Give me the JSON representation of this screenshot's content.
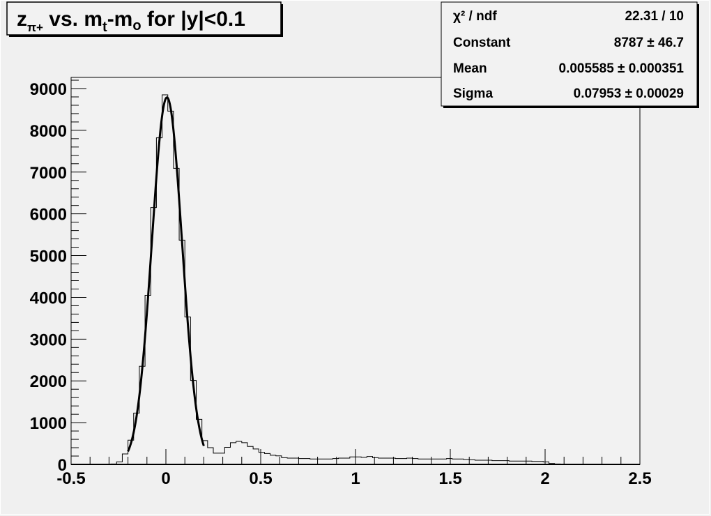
{
  "chart_data": {
    "type": "bar",
    "style": "step-histogram",
    "title_parts": {
      "z": "z",
      "z_sub": "π+",
      "vs": " vs. m",
      "t_sub": "t",
      "minus": "-m",
      "o_sub": "o",
      "rest": " for |y|<0.1"
    },
    "xlabel": "",
    "ylabel": "",
    "xlim": [
      -0.5,
      2.5
    ],
    "ylim": [
      0,
      9250
    ],
    "x_ticks": [
      "-0.5",
      "0",
      "0.5",
      "1",
      "1.5",
      "2",
      "2.5"
    ],
    "y_ticks": [
      "0",
      "1000",
      "2000",
      "3000",
      "4000",
      "5000",
      "6000",
      "7000",
      "8000",
      "9000"
    ],
    "grid": false,
    "bin_width": 0.03,
    "bin_start": -0.5,
    "values": [
      0,
      0,
      0,
      0,
      0,
      0,
      0,
      10,
      60,
      250,
      580,
      1230,
      2350,
      4050,
      6150,
      7820,
      8850,
      8460,
      7090,
      5370,
      3530,
      2010,
      1080,
      570,
      400,
      270,
      270,
      410,
      520,
      550,
      520,
      430,
      370,
      290,
      260,
      220,
      205,
      160,
      150,
      150,
      140,
      140,
      130,
      130,
      130,
      130,
      140,
      150,
      150,
      180,
      180,
      170,
      190,
      160,
      150,
      150,
      150,
      140,
      140,
      150,
      140,
      130,
      130,
      130,
      130,
      130,
      140,
      130,
      130,
      120,
      110,
      100,
      100,
      100,
      90,
      90,
      90,
      80,
      80,
      80,
      80,
      70,
      70,
      60,
      20,
      10,
      0,
      0,
      0,
      0,
      0,
      0,
      0,
      0,
      0,
      0,
      0,
      0,
      0,
      0
    ],
    "fit": {
      "function": "gaus",
      "range": [
        -0.2,
        0.2
      ],
      "constant": 8787,
      "mean": 0.005585,
      "sigma": 0.07953
    },
    "stats_box": {
      "position": "top-right",
      "rows": [
        {
          "label": "χ² / ndf",
          "value": "22.31 / 10"
        },
        {
          "label": "Constant",
          "value": "8787 ± 46.7"
        },
        {
          "label": "Mean",
          "value": "0.005585 ± 0.000351"
        },
        {
          "label": "Sigma",
          "value": "0.07953 ± 0.00029"
        }
      ]
    },
    "colors": {
      "background": "#f0f0f0",
      "line": "#000000"
    }
  }
}
